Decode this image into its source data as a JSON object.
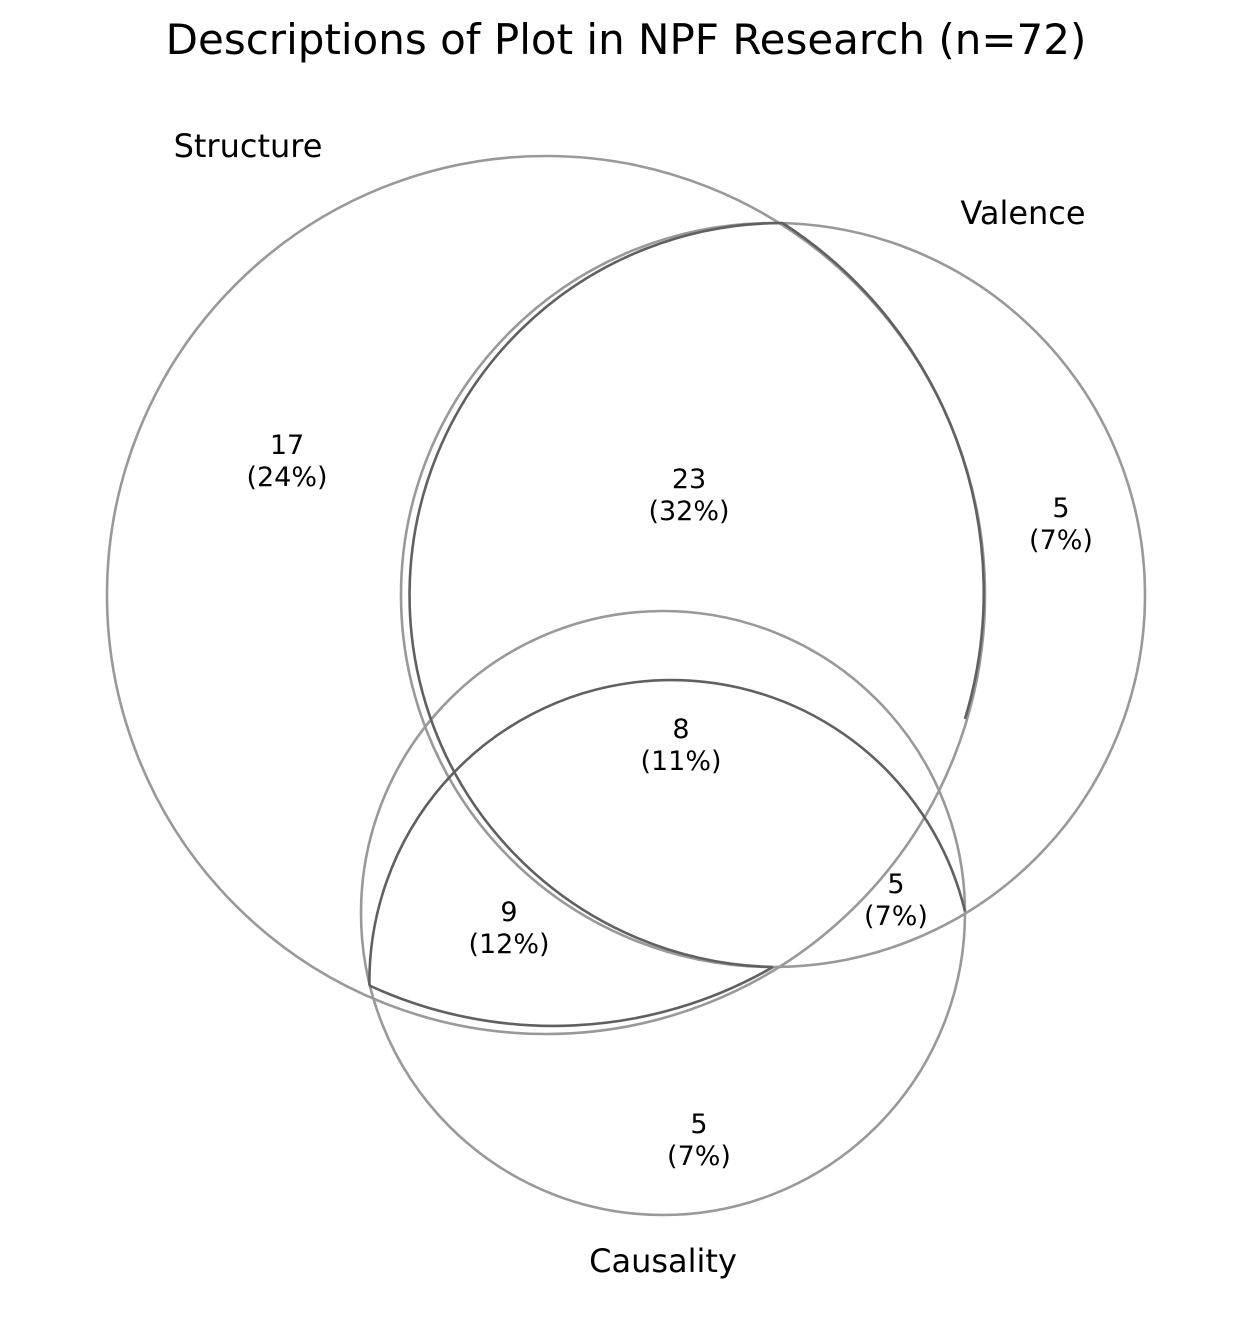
{
  "diagram": {
    "title": "Descriptions of Plot in NPF Research (n=72)",
    "type": "venn-3",
    "colors": {
      "outer_edge": "#999999",
      "inner_edge": "#606060",
      "text": "#000000",
      "background": "#ffffff"
    },
    "sets": {
      "structure": {
        "label": "Structure"
      },
      "valence": {
        "label": "Valence"
      },
      "causality": {
        "label": "Causality"
      }
    },
    "regions": {
      "structure_only": {
        "count": "17",
        "percent": "(24%)"
      },
      "valence_only": {
        "count": "5",
        "percent": "(7%)"
      },
      "causality_only": {
        "count": "5",
        "percent": "(7%)"
      },
      "structure_valence": {
        "count": "23",
        "percent": "(32%)"
      },
      "structure_causality": {
        "count": "9",
        "percent": "(12%)"
      },
      "valence_causality": {
        "count": "5",
        "percent": "(7%)"
      },
      "all_three": {
        "count": "8",
        "percent": "(11%)"
      }
    }
  }
}
